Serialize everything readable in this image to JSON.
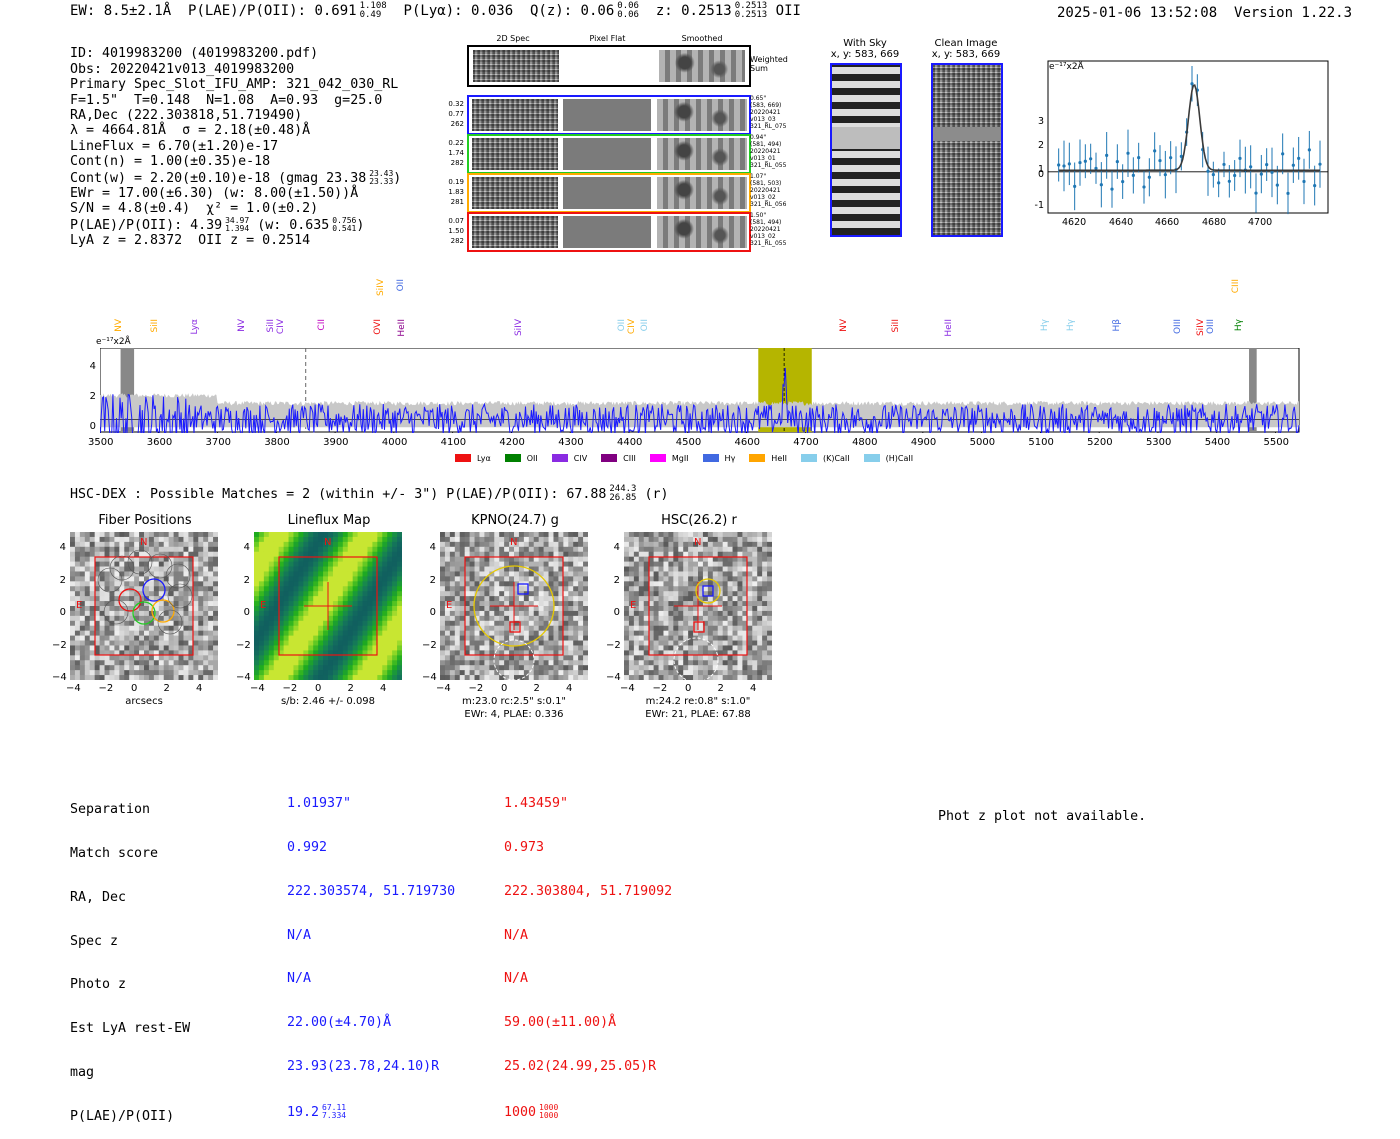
{
  "header": {
    "ew": "EW: 8.5±2.1Å",
    "plae_label": "P(LAE)/P(OII): 0.691",
    "plae_hi": "1.108",
    "plae_lo": "0.49",
    "plya": "P(Lyα): 0.036",
    "qz_label": "Q(z): 0.06",
    "qz_hi": "0.06",
    "qz_lo": "0.06",
    "z_label": "z: 0.2513",
    "z_hi": "0.2513",
    "z_lo": "0.2513",
    "z_line": "OII",
    "timestamp": "2025-01-06 13:52:08",
    "version": "Version 1.22.3"
  },
  "info": {
    "id": "ID: 4019983200 (4019983200.pdf)",
    "obs": "Obs: 20220421v013_4019983200",
    "primary": "Primary Spec_Slot_IFU_AMP: 321_042_030_RL",
    "params": "F=1.5\"  T=0.148  N=1.08  A=0.93  g=25.0",
    "radec": "RA,Dec (222.303818,51.719490)",
    "lambda": "λ = 4664.81Å  σ = 2.18(±0.48)Å",
    "lineflux": "LineFlux = 6.70(±1.20)e-17",
    "contn": "Cont(n) = 1.00(±0.35)e-18",
    "contw": "Cont(w) = 2.20(±0.10)e-18 (gmag 23.38",
    "contw_hi": "23.43",
    "contw_lo": "23.33",
    "contw_end": ")",
    "ewr": "EWr = 17.00(±6.30) (w: 8.00(±1.50))Å",
    "sn": "S/N = 4.8(±0.4)  χ² = 1.0(±0.2)",
    "plae": "P(LAE)/P(OII): 4.39",
    "plae_hi": "34.97",
    "plae_lo": "1.394",
    "plae_w": "(w: 0.635",
    "plae_w_hi": "0.756",
    "plae_w_lo": "0.541",
    "plae_end": ")",
    "lyaz": "LyA z = 2.8372  OII z = 0.2514"
  },
  "cutouts": {
    "col_2d": "2D Spec",
    "col_flat": "Pixel Flat",
    "col_smooth": "Smoothed",
    "weighted": "Weighted Sum",
    "rows": [
      {
        "a": "0.32",
        "b": "0.77",
        "c": "262",
        "color": "#1a1aff",
        "r1": "0.65\"",
        "r2": "(583, 669)",
        "r3": "20220421",
        "r4": "v013_03",
        "r5": "321_RL_075"
      },
      {
        "a": "0.22",
        "b": "1.74",
        "c": "282",
        "color": "#22cc22",
        "r1": "0.94\"",
        "r2": "(581, 494)",
        "r3": "20220421",
        "r4": "v013_01",
        "r5": "321_RL_055"
      },
      {
        "a": "0.19",
        "b": "1.83",
        "c": "281",
        "color": "#ffaa00",
        "r1": "1.07\"",
        "r2": "(581, 503)",
        "r3": "20220421",
        "r4": "v013_02",
        "r5": "321_RL_056"
      },
      {
        "a": "0.07",
        "b": "1.50",
        "c": "282",
        "color": "#ee1111",
        "r1": "1.50\"",
        "r2": "(581, 494)",
        "r3": "20220421",
        "r4": "v013_02",
        "r5": "321_RL_055"
      }
    ],
    "sky_title": "With Sky",
    "sky_coords": "x, y: 583, 669",
    "clean_title": "Clean Image",
    "clean_coords": "x, y: 583, 669"
  },
  "zoom_chart": {
    "unit_label": "e⁻¹⁷x2Å",
    "xticks": [
      "4620",
      "4640",
      "4660",
      "4680",
      "4700"
    ],
    "yticks": [
      "-1",
      "0",
      "1",
      "2",
      "3"
    ]
  },
  "spectrum": {
    "unit_label": "e⁻¹⁷x2Å",
    "xticks": [
      "3500",
      "3600",
      "3700",
      "3800",
      "3900",
      "4000",
      "4100",
      "4200",
      "4300",
      "4400",
      "4500",
      "4600",
      "4700",
      "4800",
      "4900",
      "5000",
      "5100",
      "5200",
      "5300",
      "5400",
      "5500"
    ],
    "yticks": [
      "0",
      "2",
      "4"
    ],
    "lines": [
      {
        "name": "NV",
        "color": "#ffaa00"
      },
      {
        "name": "SiII",
        "color": "#ffaa00"
      },
      {
        "name": "Lyα",
        "color": "#8a2be2"
      },
      {
        "name": "NV",
        "color": "#8a2be2"
      },
      {
        "name": "SiII",
        "color": "#8a2be2"
      },
      {
        "name": "CIV",
        "color": "#8a2be2"
      },
      {
        "name": "CII",
        "color": "#c000c0"
      },
      {
        "name": "SiIV",
        "color": "#ffaa00"
      },
      {
        "name": "OII",
        "color": "#4169e1"
      },
      {
        "name": "OVI",
        "color": "#ee1111"
      },
      {
        "name": "HeII",
        "color": "#8b008b"
      },
      {
        "name": "SiIV",
        "color": "#8a2be2"
      },
      {
        "name": "OII",
        "color": "#87ceeb"
      },
      {
        "name": "CIV",
        "color": "#ffaa00"
      },
      {
        "name": "OII",
        "color": "#87ceeb"
      },
      {
        "name": "NV",
        "color": "#ee1111"
      },
      {
        "name": "SiII",
        "color": "#ee1111"
      },
      {
        "name": "HeII",
        "color": "#8a2be2"
      },
      {
        "name": "Hγ",
        "color": "#87ceeb"
      },
      {
        "name": "Hγ",
        "color": "#87ceeb"
      },
      {
        "name": "Hβ",
        "color": "#4169e1"
      },
      {
        "name": "OIII",
        "color": "#4169e1"
      },
      {
        "name": "SiIV",
        "color": "#ee1111"
      },
      {
        "name": "OIII",
        "color": "#4169e1"
      },
      {
        "name": "CIII",
        "color": "#ffaa00"
      },
      {
        "name": "Hγ",
        "color": "#008000"
      }
    ],
    "legend": [
      {
        "label": "Lyα",
        "color": "#ee1111"
      },
      {
        "label": "OII",
        "color": "#008000"
      },
      {
        "label": "CIV",
        "color": "#8a2be2"
      },
      {
        "label": "CIII",
        "color": "#800080"
      },
      {
        "label": "MgII",
        "color": "#ff00ff"
      },
      {
        "label": "Hγ",
        "color": "#4169e1"
      },
      {
        "label": "HeII",
        "color": "#ffa500"
      },
      {
        "label": "(K)CaII",
        "color": "#87ceeb"
      },
      {
        "label": "(H)CaII",
        "color": "#87ceeb"
      }
    ]
  },
  "hsc": {
    "summary": "HSC-DEX : Possible Matches = 2 (within +/- 3\")  P(LAE)/P(OII): 67.88",
    "summary_hi": "244.3",
    "summary_lo": "26.85",
    "summary_end": "(r)",
    "panels": [
      {
        "title": "Fiber Positions",
        "caption1": "arcsecs",
        "caption2": ""
      },
      {
        "title": "Lineflux Map",
        "caption1": "s/b: 2.46 +/- 0.098",
        "caption2": ""
      },
      {
        "title": "KPNO(24.7) g",
        "caption1": "m:23.0 rc:2.5\"  s:0.1\"",
        "caption2": "EWr: 4, PLAE: 0.336"
      },
      {
        "title": "HSC(26.2) r",
        "caption1": "m:24.2  re:0.8\"  s:1.0\"",
        "caption2": "EWr: 21, PLAE: 67.88"
      }
    ],
    "axis_ticks": [
      "4",
      "2",
      "0",
      "−2",
      "−4"
    ],
    "x_ticks": [
      "−4",
      "−2",
      "0",
      "2",
      "4"
    ],
    "north": "N",
    "east": "E"
  },
  "matches": {
    "labels": [
      "Separation",
      "Match score",
      "RA, Dec",
      "Spec z",
      "Photo z",
      "Est LyA rest-EW",
      "mag",
      "P(LAE)/P(OII)"
    ],
    "m1": {
      "color": "#1a1aff",
      "sep": "1.01937\"",
      "score": "0.992",
      "radec": "222.303574, 51.719730",
      "specz": "N/A",
      "photoz": "N/A",
      "ew": "22.00(±4.70)Å",
      "mag": "23.93(23.78,24.10)R",
      "plae": "19.2",
      "plae_hi": "67.11",
      "plae_lo": "7.334"
    },
    "m2": {
      "color": "#ee1111",
      "sep": "1.43459\"",
      "score": "0.973",
      "radec": "222.303804, 51.719092",
      "specz": "N/A",
      "photoz": "N/A",
      "ew": "59.00(±11.00)Å",
      "mag": "25.02(24.99,25.05)R",
      "plae": "1000",
      "plae_hi": "1000",
      "plae_lo": "1000"
    },
    "photz_note": "Phot z plot not available."
  }
}
